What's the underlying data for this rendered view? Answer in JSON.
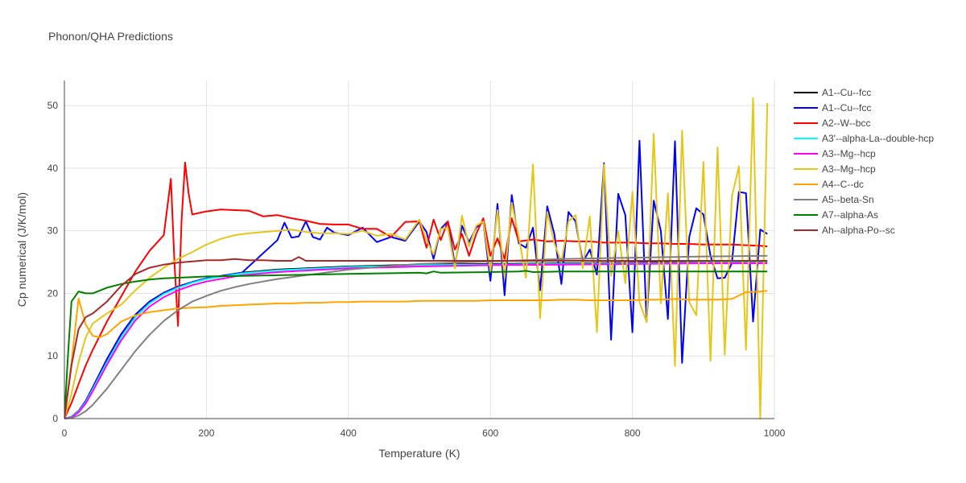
{
  "chart_data": {
    "type": "line",
    "title": "Phonon/QHA Predictions",
    "xlabel": "Temperature (K)",
    "ylabel": "Cp numerical (J/K/mol)",
    "xlim": [
      0,
      1000
    ],
    "ylim": [
      0,
      54
    ],
    "xticks": [
      0,
      200,
      400,
      600,
      800,
      1000
    ],
    "yticks": [
      0,
      10,
      20,
      30,
      40,
      50
    ],
    "grid": true,
    "legend_position": "right",
    "series": [
      {
        "name": "A1--Cu--fcc",
        "color": "#000000",
        "x": [
          0,
          10,
          20,
          30,
          40,
          60,
          80,
          100,
          120,
          140,
          160,
          180,
          200,
          250,
          300,
          400,
          500,
          600,
          700,
          800,
          900,
          990
        ],
        "y": [
          0,
          0.3,
          1.2,
          2.8,
          5,
          9.5,
          13.5,
          16.6,
          18.7,
          20.1,
          21.1,
          21.8,
          22.4,
          23.3,
          23.8,
          24.3,
          24.6,
          24.7,
          24.8,
          24.9,
          25,
          25
        ]
      },
      {
        "name": "A1--Cu--fcc",
        "color": "#0000ff",
        "x": [
          0,
          10,
          20,
          30,
          40,
          60,
          80,
          100,
          120,
          140,
          160,
          180,
          200,
          250,
          300,
          310,
          320,
          330,
          340,
          350,
          360,
          370,
          380,
          400,
          420,
          440,
          460,
          480,
          500,
          510,
          520,
          530,
          540,
          550,
          560,
          570,
          580,
          590,
          600,
          610,
          620,
          630,
          640,
          650,
          660,
          670,
          680,
          690,
          700,
          710,
          720,
          730,
          740,
          750,
          760,
          770,
          780,
          790,
          800,
          810,
          820,
          830,
          840,
          850,
          860,
          870,
          880,
          890,
          900,
          910,
          920,
          930,
          940,
          950,
          960,
          970,
          980,
          990
        ],
        "y": [
          0,
          0.3,
          1.2,
          2.8,
          5,
          9.5,
          13.5,
          16.6,
          18.7,
          20.1,
          21.1,
          21.8,
          22.4,
          23.3,
          28.5,
          31.3,
          28.9,
          29.1,
          31.5,
          29,
          28.6,
          30.5,
          29.7,
          29.3,
          30.5,
          28.2,
          29,
          28.4,
          31.5,
          29.8,
          25.5,
          30.3,
          31.5,
          24.5,
          30.8,
          28.2,
          30.5,
          31.5,
          22,
          34.3,
          19.7,
          35.7,
          28,
          27.3,
          30.5,
          20.5,
          33.9,
          29.5,
          21.5,
          33,
          31.5,
          25,
          27,
          23,
          40.8,
          12.6,
          35.9,
          32.5,
          13.8,
          44.4,
          15.5,
          34.8,
          30,
          15.9,
          44.3,
          8.9,
          29,
          33.6,
          32.6,
          26,
          22.4,
          22.5,
          24.8,
          36.2,
          36,
          15.5,
          30.2,
          29.5
        ]
      },
      {
        "name": "A2--W--bcc",
        "color": "#ff0000",
        "x": [
          0,
          10,
          20,
          30,
          40,
          60,
          80,
          100,
          120,
          140,
          150,
          155,
          160,
          165,
          170,
          175,
          180,
          200,
          220,
          240,
          260,
          280,
          300,
          320,
          340,
          360,
          380,
          400,
          420,
          440,
          460,
          480,
          500,
          510,
          520,
          530,
          540,
          550,
          560,
          570,
          580,
          590,
          600,
          610,
          620,
          630,
          640,
          660,
          680,
          700,
          720,
          740,
          760,
          780,
          800,
          820,
          840,
          860,
          880,
          900,
          920,
          940,
          960,
          980,
          990
        ],
        "y": [
          0,
          2.5,
          5.5,
          8.5,
          11,
          15.5,
          19.5,
          23.5,
          26.8,
          29.3,
          38.3,
          25,
          14.8,
          31.5,
          40.9,
          36,
          32.6,
          33.1,
          33.4,
          33.3,
          33.2,
          32.3,
          32.5,
          32,
          31.6,
          31.1,
          31,
          31,
          30.3,
          30.3,
          29,
          31.4,
          31.5,
          27.3,
          31.8,
          28.5,
          31.5,
          27,
          29.5,
          26,
          29.5,
          32,
          26,
          28.8,
          25.5,
          32,
          28.3,
          28.6,
          28.3,
          28.4,
          28.3,
          28.3,
          28.1,
          28.1,
          28.1,
          28,
          28,
          27.9,
          27.9,
          27.8,
          27.8,
          27.8,
          27.7,
          27.6,
          27.5
        ]
      },
      {
        "name": "A3'--alpha-La--double-hcp",
        "color": "#00ffff",
        "x": [
          0,
          10,
          20,
          30,
          40,
          60,
          80,
          100,
          120,
          140,
          160,
          180,
          200,
          250,
          300,
          400,
          500,
          600,
          700,
          800,
          900,
          990
        ],
        "y": [
          0,
          0.3,
          1.1,
          2.6,
          4.7,
          9,
          13,
          16.2,
          18.4,
          19.9,
          20.9,
          21.7,
          22.3,
          23.2,
          23.7,
          24.2,
          24.5,
          24.6,
          24.7,
          24.8,
          24.9,
          24.9
        ]
      },
      {
        "name": "A3--Mg--hcp",
        "color": "#ff00ff",
        "x": [
          0,
          10,
          20,
          30,
          40,
          60,
          80,
          100,
          120,
          140,
          160,
          180,
          200,
          250,
          300,
          400,
          500,
          600,
          700,
          800,
          900,
          990
        ],
        "y": [
          0,
          0.2,
          1,
          2.4,
          4.4,
          8.6,
          12.5,
          15.7,
          17.9,
          19.4,
          20.5,
          21.3,
          21.9,
          22.9,
          23.4,
          24,
          24.3,
          24.5,
          24.6,
          24.7,
          24.8,
          24.8
        ]
      },
      {
        "name": "A3--Mg--hcp",
        "color": "#e6c619",
        "x": [
          0,
          10,
          20,
          30,
          40,
          60,
          80,
          100,
          120,
          140,
          160,
          180,
          200,
          220,
          240,
          260,
          280,
          300,
          320,
          340,
          360,
          380,
          400,
          420,
          440,
          460,
          480,
          500,
          510,
          520,
          530,
          540,
          550,
          560,
          570,
          580,
          590,
          600,
          610,
          620,
          630,
          640,
          650,
          660,
          670,
          680,
          690,
          700,
          710,
          720,
          730,
          740,
          750,
          760,
          770,
          780,
          790,
          800,
          810,
          820,
          830,
          840,
          850,
          860,
          870,
          880,
          890,
          900,
          910,
          920,
          930,
          940,
          950,
          960,
          970,
          980,
          990
        ],
        "y": [
          0,
          4,
          9,
          13,
          15.2,
          16.8,
          18.2,
          20.5,
          22.5,
          24.1,
          25.5,
          26.6,
          27.8,
          28.7,
          29.3,
          29.6,
          29.8,
          30,
          30.2,
          29.8,
          29.6,
          29.6,
          29.5,
          30,
          29.2,
          29.5,
          28.6,
          31.8,
          28.5,
          26.2,
          30.3,
          30.5,
          24,
          32.4,
          27.5,
          30.8,
          31.5,
          23.5,
          33.3,
          22.5,
          34.5,
          29,
          22.5,
          40.6,
          16,
          33,
          28,
          25,
          31.5,
          32.5,
          24,
          32.3,
          13.8,
          40.6,
          22.8,
          30,
          21.6,
          36.2,
          18.6,
          15.4,
          45.5,
          18.4,
          36,
          8.4,
          46,
          18.6,
          16.5,
          41,
          9.2,
          43.3,
          10.2,
          35.4,
          40.3,
          11,
          51.2,
          0,
          50.4
        ]
      },
      {
        "name": "A4--C--dc",
        "color": "#ffa500",
        "x": [
          0,
          10,
          20,
          30,
          40,
          50,
          60,
          80,
          100,
          120,
          140,
          160,
          180,
          200,
          220,
          240,
          260,
          280,
          300,
          320,
          340,
          360,
          380,
          400,
          420,
          440,
          460,
          480,
          500,
          520,
          540,
          560,
          580,
          600,
          620,
          640,
          660,
          680,
          700,
          720,
          740,
          760,
          780,
          800,
          820,
          840,
          860,
          880,
          900,
          920,
          940,
          960,
          980,
          990
        ],
        "y": [
          0,
          9,
          19.2,
          15,
          13.2,
          13,
          13.5,
          15.5,
          16.5,
          17,
          17.3,
          17.6,
          17.7,
          17.8,
          18,
          18.1,
          18.2,
          18.3,
          18.4,
          18.4,
          18.5,
          18.5,
          18.6,
          18.6,
          18.7,
          18.7,
          18.7,
          18.7,
          18.8,
          18.8,
          18.8,
          18.8,
          18.8,
          18.9,
          18.9,
          18.9,
          18.9,
          18.9,
          19,
          19,
          18.9,
          18.9,
          18.9,
          18.9,
          19,
          19,
          19.1,
          19,
          19,
          19,
          19.1,
          20.2,
          20.3,
          20.4
        ]
      },
      {
        "name": "A5--beta-Sn",
        "color": "#808080",
        "x": [
          0,
          10,
          20,
          30,
          40,
          60,
          80,
          100,
          120,
          140,
          160,
          180,
          200,
          220,
          240,
          260,
          280,
          300,
          320,
          340,
          360,
          380,
          400,
          450,
          500,
          550,
          600,
          650,
          700,
          800,
          900,
          990
        ],
        "y": [
          0,
          0.1,
          0.5,
          1.2,
          2.2,
          4.8,
          7.8,
          10.8,
          13.4,
          15.6,
          17.3,
          18.7,
          19.6,
          20.4,
          21,
          21.5,
          21.9,
          22.3,
          22.6,
          22.9,
          23.2,
          23.5,
          23.8,
          24.3,
          24.7,
          24.9,
          25.1,
          25.3,
          25.5,
          25.7,
          25.9,
          26
        ]
      },
      {
        "name": "A7--alpha-As",
        "color": "#008000",
        "x": [
          0,
          5,
          10,
          20,
          30,
          40,
          60,
          80,
          100,
          120,
          140,
          160,
          180,
          200,
          250,
          300,
          400,
          500,
          510,
          520,
          530,
          600,
          640,
          650,
          660,
          700,
          800,
          900,
          990
        ],
        "y": [
          0,
          10,
          18.7,
          20.3,
          20,
          20,
          20.9,
          21.5,
          21.9,
          22.2,
          22.4,
          22.5,
          22.6,
          22.7,
          22.8,
          22.9,
          23.1,
          23.3,
          23.2,
          23.5,
          23.3,
          23.4,
          23.5,
          23.6,
          23.4,
          23.5,
          23.5,
          23.5,
          23.5
        ]
      },
      {
        "name": "Ah--alpha-Po--sc",
        "color": "#a52a2a",
        "x": [
          0,
          10,
          20,
          30,
          40,
          60,
          80,
          100,
          120,
          140,
          160,
          180,
          200,
          220,
          240,
          260,
          280,
          300,
          320,
          330,
          340,
          360,
          400,
          450,
          500,
          600,
          700,
          800,
          900,
          990
        ],
        "y": [
          0,
          8.5,
          14.3,
          16.2,
          16.8,
          18.7,
          21.2,
          23.1,
          24.1,
          24.6,
          24.9,
          25.1,
          25.3,
          25.3,
          25.5,
          25.3,
          25.3,
          25.2,
          25.2,
          25.8,
          25.2,
          25.2,
          25.2,
          25.2,
          25.2,
          25.2,
          25.2,
          25.2,
          25.2,
          25.2
        ]
      }
    ]
  }
}
